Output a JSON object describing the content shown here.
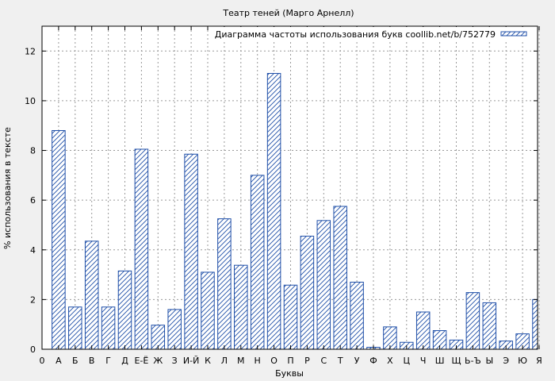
{
  "chart_data": {
    "type": "bar",
    "title": "Театр теней (Марго Арнелл)",
    "xlabel": "Буквы",
    "ylabel": "% использования в тексте",
    "ylim": [
      0,
      13
    ],
    "yticks": [
      0,
      2,
      4,
      6,
      8,
      10,
      12
    ],
    "x_start_label": "0",
    "grid": true,
    "legend_position": "top-right",
    "series": [
      {
        "name": "Диаграмма частоты использования букв coollib.net/b/752779",
        "color": "#1f4fa8",
        "fill": "hatch"
      }
    ],
    "categories": [
      "А",
      "Б",
      "В",
      "Г",
      "Д",
      "Е-Ё",
      "Ж",
      "З",
      "И-Й",
      "К",
      "Л",
      "М",
      "Н",
      "О",
      "П",
      "Р",
      "С",
      "Т",
      "У",
      "Ф",
      "Х",
      "Ц",
      "Ч",
      "Ш",
      "Щ",
      "Ь-Ъ",
      "Ы",
      "Э",
      "Ю",
      "Я"
    ],
    "values": [
      8.8,
      1.7,
      4.35,
      1.7,
      3.15,
      8.05,
      0.97,
      1.6,
      7.85,
      3.1,
      5.25,
      3.38,
      7.0,
      11.1,
      2.58,
      4.55,
      5.18,
      5.75,
      2.7,
      0.08,
      0.9,
      0.28,
      1.5,
      0.75,
      0.37,
      2.28,
      1.87,
      0.33,
      0.62,
      2.0
    ]
  }
}
